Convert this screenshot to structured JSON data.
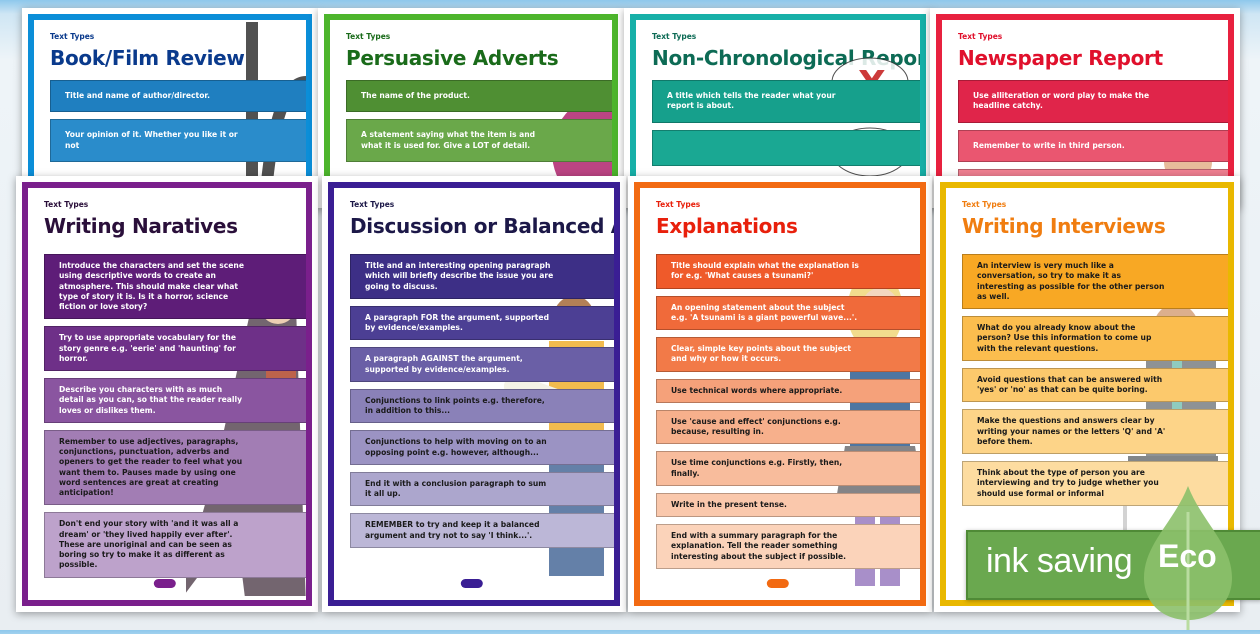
{
  "posters": [
    {
      "id": "book-film-review",
      "label": "Text Types",
      "title": "Book/Film Review",
      "accent": "#0b8ed8",
      "title_color": "#0a3a8c",
      "shades": [
        "#1f7fc0",
        "#2a8ccb"
      ],
      "dark_from": 99,
      "items": [
        "Title and name of author/director.",
        "Your opinion of it. Whether you like it or not"
      ],
      "figure": "film-reel"
    },
    {
      "id": "persuasive-adverts",
      "label": "Text Types",
      "title": "Persuasive Adverts",
      "accent": "#4db52c",
      "title_color": "#1a6b1a",
      "shades": [
        "#4f8f33",
        "#6aa84a"
      ],
      "dark_from": 99,
      "items": [
        "The name of the product.",
        "A statement saying what the item is and what it is used for. Give a LOT of detail."
      ],
      "figure": "product"
    },
    {
      "id": "non-chronological-reports",
      "label": "Text Types",
      "title": "Non-Chronological Reports",
      "accent": "#17b0a8",
      "title_color": "#0d6b55",
      "shades": [
        "#16a08c",
        "#1aa893"
      ],
      "dark_from": 99,
      "items": [
        "A title which tells the reader what your report is about.",
        ""
      ],
      "figure": "thought-bubbles"
    },
    {
      "id": "newspaper-report",
      "label": "Text Types",
      "title": "Newspaper Report",
      "accent": "#e8213f",
      "title_color": "#e0102c",
      "shades": [
        "#e0254a",
        "#ea5670",
        "#ef7f90"
      ],
      "dark_from": 99,
      "items": [
        "Use alliteration or word play to make the headline catchy.",
        "Remember to write in third person.",
        ""
      ],
      "figure": "reporter"
    },
    {
      "id": "writing-narratives",
      "label": "Text Types",
      "title": "Writing Naratives",
      "accent": "#7a1f8c",
      "title_color": "#2a0f3a",
      "shades": [
        "#5e1d78",
        "#6e3088",
        "#8a55a0",
        "#a27db4",
        "#bda2cb"
      ],
      "dark_from": 3,
      "items": [
        "Introduce the characters and set the scene using descriptive words to create an atmosphere. This should make clear what type of story it is. Is it a horror, science fiction or love story?",
        "Try to use appropriate vocabulary for the story genre e.g. 'eerie' and 'haunting' for horror.",
        "Describe you characters with as much detail as you can, so that the reader really loves or dislikes them.",
        "Remember to use adjectives, paragraphs, conjunctions, punctuation, adverbs and openers to get the reader to feel what you want them to. Pauses made by using one word sentences are great at creating anticipation!",
        "Don't end your story with 'and it was all a dream' or 'they lived happily ever after'. These are unoriginal and can be seen as boring so try to make it as different as possible."
      ],
      "figure": "vampire"
    },
    {
      "id": "discussion-balanced-arguments",
      "label": "Text Types",
      "title": "Discussion or Balanced Arguments",
      "accent": "#3a1e94",
      "title_color": "#1c1848",
      "shades": [
        "#3d2f86",
        "#4c3f94",
        "#6a5fa6",
        "#8a81b8",
        "#9b93c3",
        "#aca6cd",
        "#bcb7d7"
      ],
      "dark_from": 3,
      "items": [
        "Title and an interesting opening paragraph which will briefly describe the issue you are going to discuss.",
        "A paragraph FOR the argument, supported by evidence/examples.",
        "A paragraph AGAINST the argument, supported by evidence/examples.",
        "Conjunctions to link points e.g. therefore, in addition to this...",
        "Conjunctions to help with moving on to an opposing point e.g. however, although...",
        "End it with a conclusion paragraph to sum it all up.",
        "REMEMBER to try and keep it a balanced argument and try not to say 'I think...'."
      ],
      "figure": "boy-reading"
    },
    {
      "id": "explanations",
      "label": "Text Types",
      "title": "Explanations",
      "accent": "#f26a12",
      "title_color": "#e8200c",
      "shades": [
        "#ef5a2a",
        "#f06a3a",
        "#f27a48",
        "#f5a17a",
        "#f7b08c",
        "#f8bc9c",
        "#fac8ac",
        "#fbd3ba"
      ],
      "dark_from": 3,
      "items": [
        "Title should explain what the explanation is for e.g. 'What causes a tsunami?'",
        "An opening statement about the subject e.g. 'A tsunami is a giant powerful wave...'.",
        "Clear, simple key points about the subject and why or how it occurs.",
        "Use technical words where appropriate.",
        "Use 'cause and effect' conjunctions e.g. because, resulting in.",
        "Use time conjunctions e.g. Firstly, then, finally.",
        "Write in the present tense.",
        "End with a summary paragraph for the explanation. Tell the reader something interesting about the subject if possible."
      ],
      "figure": "girl-writing"
    },
    {
      "id": "writing-interviews",
      "label": "Text Types",
      "title": "Writing Interviews",
      "accent": "#e9b800",
      "title_color": "#f07d10",
      "shades": [
        "#f8a824",
        "#fbbd4e",
        "#fcc96c",
        "#fdd488",
        "#fddca0"
      ],
      "dark_from": 0,
      "items": [
        "An interview is very much like a conversation, so try to make it as interesting as possible for the other person as well.",
        "What do you already know about the person? Use this information to come up with the relevant questions.",
        "Avoid questions that can be answered with 'yes' or 'no' as that can be quite boring.",
        "Make the questions and answers clear by writing your names or the letters 'Q' and 'A' before them.",
        "Think about the type of person you are interviewing and try to judge whether you should use formal or informal"
      ],
      "figure": "interviewer"
    }
  ],
  "badge": {
    "text": "ink saving",
    "eco": "Eco",
    "color": "#6aa84f"
  }
}
